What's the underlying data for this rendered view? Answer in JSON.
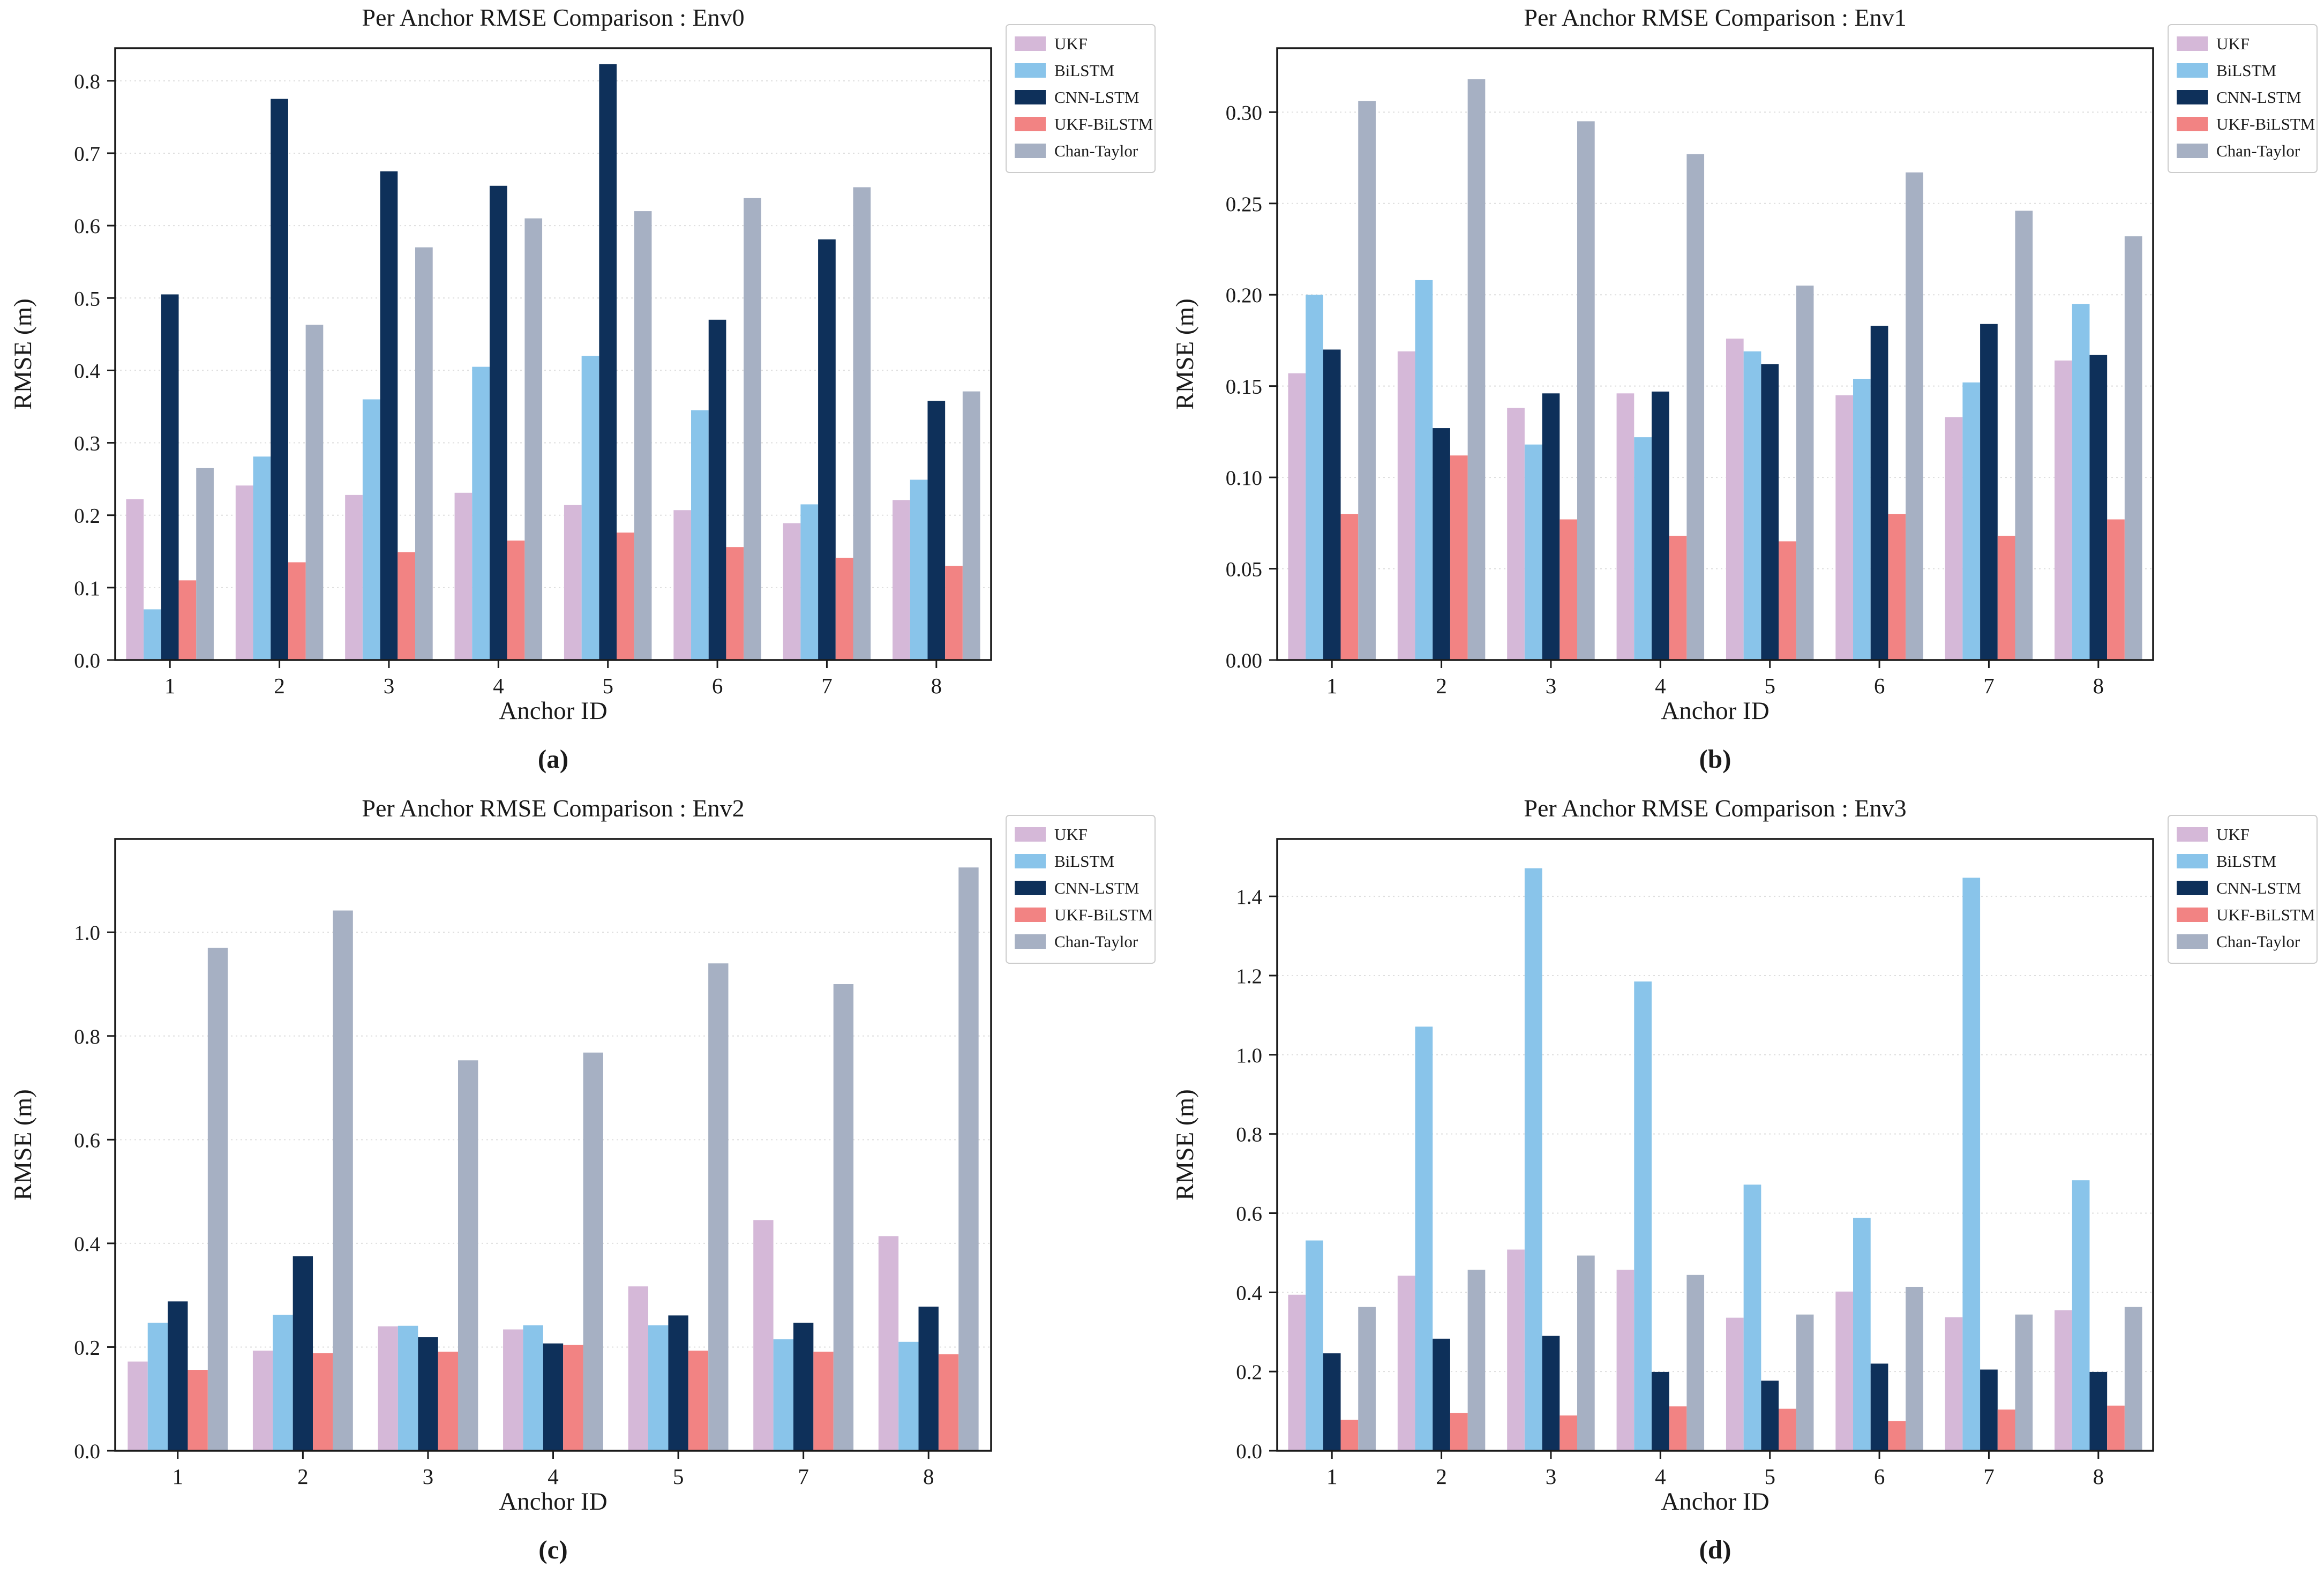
{
  "page": {
    "background": "#ffffff"
  },
  "colors": {
    "UKF": "#D5B8D8",
    "BiLSTM": "#89C4EA",
    "CNN-LSTM": "#0E305A",
    "UKF-BiLSTM": "#F28383",
    "Chan-Taylor": "#A6B0C3"
  },
  "axis_style": {
    "spine_color": "#1a1a1a",
    "grid_color": "#dedede",
    "legend_border": "#cccccc"
  },
  "chart_data": [
    {
      "type": "bar",
      "title": "Per Anchor RMSE Comparison : Env0",
      "xlabel": "Anchor ID",
      "ylabel": "RMSE (m)",
      "caption": "(a)",
      "legend_position": "outside-top-right",
      "grid": true,
      "categories": [
        "1",
        "2",
        "3",
        "4",
        "5",
        "6",
        "7",
        "8"
      ],
      "ylim": [
        0,
        0.845
      ],
      "yticks": [
        {
          "v": 0.0,
          "label": "0.0"
        },
        {
          "v": 0.1,
          "label": "0.1"
        },
        {
          "v": 0.2,
          "label": "0.2"
        },
        {
          "v": 0.3,
          "label": "0.3"
        },
        {
          "v": 0.4,
          "label": "0.4"
        },
        {
          "v": 0.5,
          "label": "0.5"
        },
        {
          "v": 0.6,
          "label": "0.6"
        },
        {
          "v": 0.7,
          "label": "0.7"
        },
        {
          "v": 0.8,
          "label": "0.8"
        }
      ],
      "series": [
        {
          "name": "UKF",
          "values": [
            0.222,
            0.241,
            0.228,
            0.231,
            0.214,
            0.207,
            0.189,
            0.221
          ]
        },
        {
          "name": "BiLSTM",
          "values": [
            0.07,
            0.281,
            0.36,
            0.405,
            0.42,
            0.345,
            0.215,
            0.249
          ]
        },
        {
          "name": "CNN-LSTM",
          "values": [
            0.505,
            0.775,
            0.675,
            0.655,
            0.823,
            0.47,
            0.581,
            0.358
          ]
        },
        {
          "name": "UKF-BiLSTM",
          "values": [
            0.11,
            0.135,
            0.149,
            0.165,
            0.176,
            0.156,
            0.141,
            0.13
          ]
        },
        {
          "name": "Chan-Taylor",
          "values": [
            0.265,
            0.463,
            0.57,
            0.61,
            0.62,
            0.638,
            0.653,
            0.371
          ]
        }
      ]
    },
    {
      "type": "bar",
      "title": "Per Anchor RMSE Comparison : Env1",
      "xlabel": "Anchor ID",
      "ylabel": "RMSE (m)",
      "caption": "(b)",
      "legend_position": "outside-top-right",
      "grid": true,
      "categories": [
        "1",
        "2",
        "3",
        "4",
        "5",
        "6",
        "7",
        "8"
      ],
      "ylim": [
        0,
        0.335
      ],
      "yticks": [
        {
          "v": 0.0,
          "label": "0.00"
        },
        {
          "v": 0.05,
          "label": "0.05"
        },
        {
          "v": 0.1,
          "label": "0.10"
        },
        {
          "v": 0.15,
          "label": "0.15"
        },
        {
          "v": 0.2,
          "label": "0.20"
        },
        {
          "v": 0.25,
          "label": "0.25"
        },
        {
          "v": 0.3,
          "label": "0.30"
        }
      ],
      "series": [
        {
          "name": "UKF",
          "values": [
            0.157,
            0.169,
            0.138,
            0.146,
            0.176,
            0.145,
            0.133,
            0.164
          ]
        },
        {
          "name": "BiLSTM",
          "values": [
            0.2,
            0.208,
            0.118,
            0.122,
            0.169,
            0.154,
            0.152,
            0.195
          ]
        },
        {
          "name": "CNN-LSTM",
          "values": [
            0.17,
            0.127,
            0.146,
            0.147,
            0.162,
            0.183,
            0.184,
            0.167
          ]
        },
        {
          "name": "UKF-BiLSTM",
          "values": [
            0.08,
            0.112,
            0.077,
            0.068,
            0.065,
            0.08,
            0.068,
            0.077
          ]
        },
        {
          "name": "Chan-Taylor",
          "values": [
            0.306,
            0.318,
            0.295,
            0.277,
            0.205,
            0.267,
            0.246,
            0.232
          ]
        }
      ]
    },
    {
      "type": "bar",
      "title": "Per Anchor RMSE Comparison : Env2",
      "xlabel": "Anchor ID",
      "ylabel": "RMSE (m)",
      "caption": "(c)",
      "legend_position": "outside-top-right",
      "grid": true,
      "categories": [
        "1",
        "2",
        "3",
        "4",
        "5",
        "7",
        "8"
      ],
      "ylim": [
        0,
        1.18
      ],
      "yticks": [
        {
          "v": 0.0,
          "label": "0.0"
        },
        {
          "v": 0.2,
          "label": "0.2"
        },
        {
          "v": 0.4,
          "label": "0.4"
        },
        {
          "v": 0.6,
          "label": "0.6"
        },
        {
          "v": 0.8,
          "label": "0.8"
        },
        {
          "v": 1.0,
          "label": "1.0"
        }
      ],
      "series": [
        {
          "name": "UKF",
          "values": [
            0.172,
            0.193,
            0.24,
            0.234,
            0.317,
            0.445,
            0.414
          ]
        },
        {
          "name": "BiLSTM",
          "values": [
            0.247,
            0.262,
            0.241,
            0.242,
            0.242,
            0.215,
            0.21
          ]
        },
        {
          "name": "CNN-LSTM",
          "values": [
            0.288,
            0.375,
            0.219,
            0.207,
            0.261,
            0.247,
            0.278
          ]
        },
        {
          "name": "UKF-BiLSTM",
          "values": [
            0.156,
            0.188,
            0.191,
            0.204,
            0.193,
            0.191,
            0.186
          ]
        },
        {
          "name": "Chan-Taylor",
          "values": [
            0.97,
            1.042,
            0.753,
            0.768,
            0.94,
            0.9,
            1.125
          ]
        }
      ]
    },
    {
      "type": "bar",
      "title": "Per Anchor RMSE Comparison : Env3",
      "xlabel": "Anchor ID",
      "ylabel": "RMSE (m)",
      "caption": "(d)",
      "legend_position": "outside-top-right",
      "grid": true,
      "categories": [
        "1",
        "2",
        "3",
        "4",
        "5",
        "6",
        "7",
        "8"
      ],
      "ylim": [
        0,
        1.545
      ],
      "yticks": [
        {
          "v": 0.0,
          "label": "0.0"
        },
        {
          "v": 0.2,
          "label": "0.2"
        },
        {
          "v": 0.4,
          "label": "0.4"
        },
        {
          "v": 0.6,
          "label": "0.6"
        },
        {
          "v": 0.8,
          "label": "0.8"
        },
        {
          "v": 1.0,
          "label": "1.0"
        },
        {
          "v": 1.2,
          "label": "1.2"
        },
        {
          "v": 1.4,
          "label": "1.4"
        }
      ],
      "series": [
        {
          "name": "UKF",
          "values": [
            0.394,
            0.442,
            0.508,
            0.457,
            0.336,
            0.402,
            0.337,
            0.355
          ]
        },
        {
          "name": "BiLSTM",
          "values": [
            0.531,
            1.071,
            1.471,
            1.185,
            0.672,
            0.588,
            1.447,
            0.683
          ]
        },
        {
          "name": "CNN-LSTM",
          "values": [
            0.246,
            0.283,
            0.29,
            0.199,
            0.177,
            0.22,
            0.205,
            0.199
          ]
        },
        {
          "name": "UKF-BiLSTM",
          "values": [
            0.078,
            0.095,
            0.089,
            0.112,
            0.106,
            0.075,
            0.104,
            0.114
          ]
        },
        {
          "name": "Chan-Taylor",
          "values": [
            0.363,
            0.457,
            0.493,
            0.444,
            0.344,
            0.414,
            0.344,
            0.363
          ]
        }
      ]
    }
  ]
}
